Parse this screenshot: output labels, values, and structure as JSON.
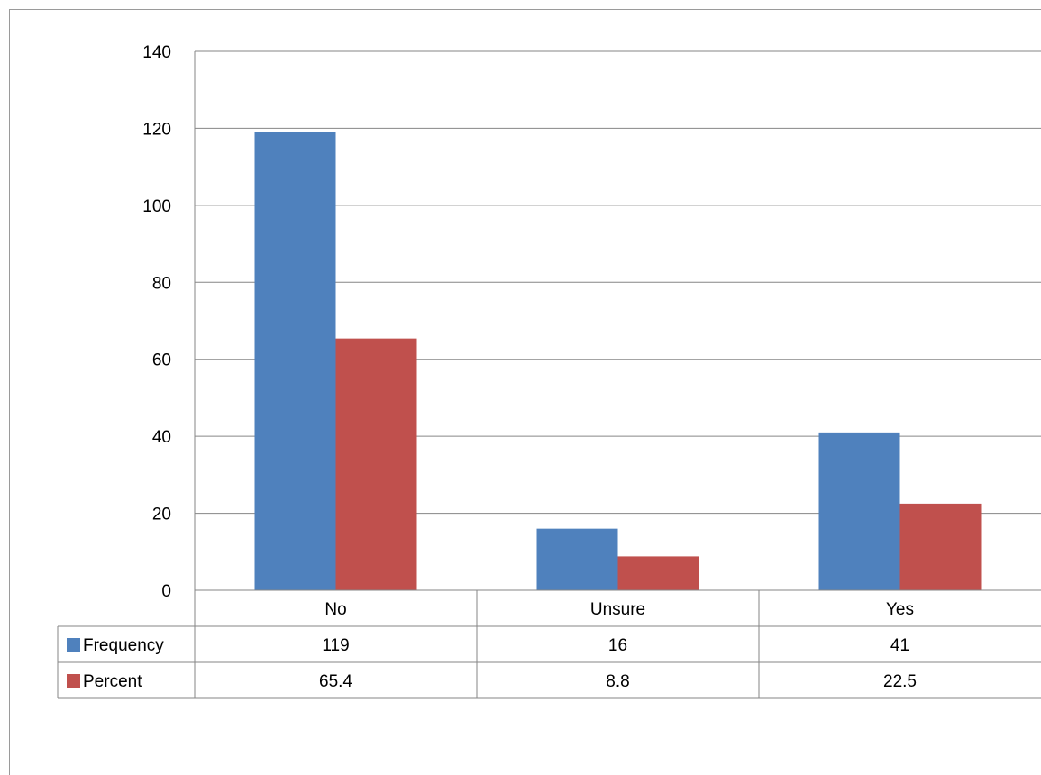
{
  "chart_data": {
    "type": "bar",
    "categories": [
      "No",
      "Unsure",
      "Yes"
    ],
    "series": [
      {
        "name": "Frequency",
        "values": [
          119,
          16,
          41
        ],
        "labels": [
          "119",
          "16",
          "41"
        ],
        "color": "#4f81bd"
      },
      {
        "name": "Percent",
        "values": [
          65.4,
          8.8,
          22.5
        ],
        "labels": [
          "65.4",
          "8.8",
          "22.5"
        ],
        "color": "#c0504d"
      }
    ],
    "yticks": [
      "0",
      "20",
      "40",
      "60",
      "80",
      "100",
      "120",
      "140"
    ],
    "ylim": [
      0,
      140
    ],
    "grid": true,
    "legend": "data-table"
  }
}
